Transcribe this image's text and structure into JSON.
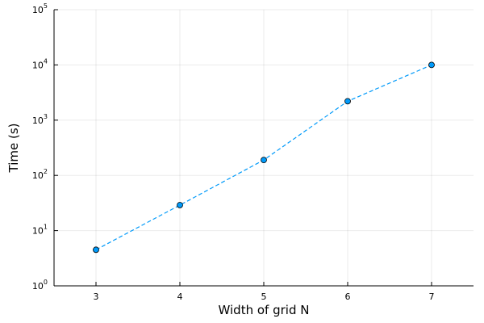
{
  "chart_data": {
    "type": "line",
    "title": "",
    "xlabel": "Width of grid N",
    "ylabel": "Time (s)",
    "x": [
      3,
      4,
      5,
      6,
      7
    ],
    "series": [
      {
        "name": "",
        "values": [
          4.5,
          29,
          190,
          2200,
          10000
        ]
      }
    ],
    "xlim": [
      2.5,
      7.5
    ],
    "ylim": [
      1,
      100000
    ],
    "yscale": "log",
    "x_ticks": [
      {
        "value": 3,
        "label": "3"
      },
      {
        "value": 4,
        "label": "4"
      },
      {
        "value": 5,
        "label": "5"
      },
      {
        "value": 6,
        "label": "6"
      },
      {
        "value": 7,
        "label": "7"
      }
    ],
    "y_ticks": [
      {
        "value": 1,
        "base": "10",
        "exp": "0"
      },
      {
        "value": 10,
        "base": "10",
        "exp": "1"
      },
      {
        "value": 100,
        "base": "10",
        "exp": "2"
      },
      {
        "value": 1000,
        "base": "10",
        "exp": "3"
      },
      {
        "value": 10000,
        "base": "10",
        "exp": "4"
      },
      {
        "value": 100000,
        "base": "10",
        "exp": "5"
      }
    ],
    "grid": true,
    "legend": "none",
    "line_style": "dashed",
    "marker": "circle",
    "series_color": "#009AFA"
  }
}
